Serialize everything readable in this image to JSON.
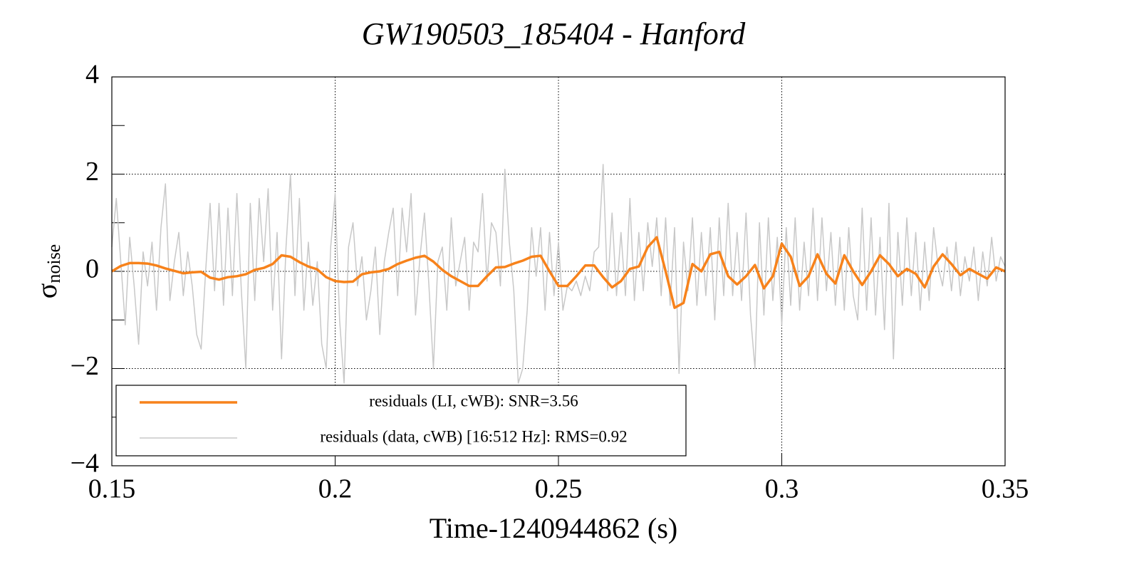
{
  "chart_data": {
    "type": "line",
    "title": "GW190503_185404 - Hanford",
    "xlabel": "Time-1240944862 (s)",
    "ylabel": "σ",
    "ylabel_subscript": "noise",
    "xlim": [
      0.15,
      0.35
    ],
    "xticks": [
      0.15,
      0.2,
      0.25,
      0.3,
      0.35
    ],
    "ylim": [
      -4,
      4
    ],
    "yticks": [
      {
        "value": -4,
        "label": "−4"
      },
      {
        "value": -2,
        "label": "−2"
      },
      0,
      2,
      4
    ],
    "yminor": [
      -3,
      -1,
      1,
      3
    ],
    "grid": true,
    "legend": "lower left",
    "series": [
      {
        "name": "residuals (data, cWB) [16:512 Hz]: RMS=0.92",
        "color": "#c8c8c8",
        "width": 1.5,
        "x": [
          0.15,
          0.151,
          0.152,
          0.153,
          0.154,
          0.155,
          0.156,
          0.157,
          0.158,
          0.159,
          0.16,
          0.161,
          0.162,
          0.163,
          0.164,
          0.165,
          0.166,
          0.167,
          0.168,
          0.169,
          0.17,
          0.171,
          0.172,
          0.173,
          0.174,
          0.175,
          0.176,
          0.177,
          0.178,
          0.179,
          0.18,
          0.181,
          0.182,
          0.183,
          0.184,
          0.185,
          0.186,
          0.187,
          0.188,
          0.189,
          0.19,
          0.191,
          0.192,
          0.193,
          0.194,
          0.195,
          0.196,
          0.197,
          0.198,
          0.199,
          0.2,
          0.201,
          0.202,
          0.203,
          0.204,
          0.205,
          0.206,
          0.207,
          0.208,
          0.209,
          0.21,
          0.211,
          0.212,
          0.213,
          0.214,
          0.215,
          0.216,
          0.217,
          0.218,
          0.219,
          0.22,
          0.221,
          0.222,
          0.223,
          0.224,
          0.225,
          0.226,
          0.227,
          0.228,
          0.229,
          0.23,
          0.231,
          0.232,
          0.233,
          0.234,
          0.235,
          0.236,
          0.237,
          0.238,
          0.239,
          0.24,
          0.241,
          0.242,
          0.243,
          0.244,
          0.245,
          0.246,
          0.247,
          0.248,
          0.249,
          0.25,
          0.251,
          0.252,
          0.253,
          0.254,
          0.255,
          0.256,
          0.257,
          0.258,
          0.259,
          0.26,
          0.261,
          0.262,
          0.263,
          0.264,
          0.265,
          0.266,
          0.267,
          0.268,
          0.269,
          0.27,
          0.271,
          0.272,
          0.273,
          0.274,
          0.275,
          0.276,
          0.277,
          0.278,
          0.279,
          0.28,
          0.281,
          0.282,
          0.283,
          0.284,
          0.285,
          0.286,
          0.287,
          0.288,
          0.289,
          0.29,
          0.291,
          0.292,
          0.293,
          0.294,
          0.295,
          0.296,
          0.297,
          0.298,
          0.299,
          0.3,
          0.301,
          0.302,
          0.303,
          0.304,
          0.305,
          0.306,
          0.307,
          0.308,
          0.309,
          0.31,
          0.311,
          0.312,
          0.313,
          0.314,
          0.315,
          0.316,
          0.317,
          0.318,
          0.319,
          0.32,
          0.321,
          0.322,
          0.323,
          0.324,
          0.325,
          0.326,
          0.327,
          0.328,
          0.329,
          0.33,
          0.331,
          0.332,
          0.333,
          0.334,
          0.335,
          0.336,
          0.337,
          0.338,
          0.339,
          0.34,
          0.341,
          0.342,
          0.343,
          0.344,
          0.345,
          0.346,
          0.347,
          0.348,
          0.349,
          0.35
        ],
        "values": [
          0.5,
          1.5,
          0.2,
          -1.1,
          0.7,
          -0.3,
          -1.5,
          0.4,
          -0.3,
          0.6,
          -0.8,
          0.9,
          1.8,
          -0.6,
          0.2,
          0.8,
          -0.5,
          0.4,
          -0.3,
          -1.3,
          -1.6,
          0.0,
          1.4,
          -0.4,
          1.4,
          -0.7,
          1.3,
          -0.5,
          1.6,
          -0.4,
          -2.0,
          1.4,
          -0.6,
          1.5,
          0.2,
          1.7,
          -0.8,
          0.8,
          -1.8,
          0.5,
          2.0,
          -0.5,
          1.5,
          -0.8,
          0.6,
          -0.7,
          0.2,
          -1.5,
          -2.0,
          0.5,
          1.6,
          -1.0,
          -2.3,
          0.5,
          1.0,
          -0.3,
          0.3,
          -1.0,
          -0.4,
          0.5,
          -1.3,
          0.2,
          0.8,
          1.3,
          -0.5,
          1.3,
          0.4,
          1.6,
          -0.9,
          0.3,
          1.2,
          -0.3,
          -2.0,
          0.2,
          0.5,
          -0.8,
          1.1,
          -0.3,
          0.2,
          0.7,
          -0.8,
          0.6,
          0.4,
          1.6,
          -0.2,
          1.0,
          0.8,
          -0.3,
          2.1,
          0.6,
          -0.4,
          -2.3,
          -2.0,
          -0.8,
          0.9,
          -0.1,
          0.9,
          -0.8,
          0.8,
          -0.5,
          0.6,
          -0.8,
          -0.3,
          -0.4,
          -0.2,
          -0.5,
          -0.1,
          -0.4,
          0.4,
          0.5,
          2.2,
          -0.4,
          1.2,
          -0.5,
          0.8,
          -0.5,
          1.5,
          -0.6,
          0.8,
          -0.4,
          1.0,
          0.1,
          1.1,
          -0.5,
          1.1,
          -0.7,
          0.9,
          -2.1,
          0.6,
          -0.4,
          1.1,
          -0.7,
          0.8,
          -0.5,
          0.9,
          -1.0,
          1.1,
          -0.5,
          1.4,
          -0.5,
          0.8,
          -0.6,
          1.2,
          -0.9,
          -2.0,
          1.0,
          -0.9,
          1.1,
          -0.6,
          0.7,
          -1.1,
          0.9,
          -0.7,
          1.1,
          -0.8,
          0.6,
          -0.5,
          1.3,
          -0.6,
          1.1,
          -0.4,
          0.8,
          -0.7,
          0.7,
          -0.8,
          0.9,
          -0.5,
          -1.0,
          1.3,
          -0.8,
          1.1,
          -0.9,
          0.7,
          -1.2,
          1.4,
          -1.8,
          0.8,
          -0.7,
          1.1,
          -0.5,
          0.8,
          -0.8,
          0.6,
          -0.6,
          0.9,
          0.1,
          -0.3,
          0.5,
          -0.4,
          0.6,
          -0.5,
          0.3,
          -0.2,
          0.5,
          -0.6,
          0.4,
          -0.3,
          0.7,
          -0.2,
          0.3,
          0.1
        ]
      },
      {
        "name": "residuals (LI, cWB): SNR=3.56",
        "color": "#f7821b",
        "width": 3.5,
        "x": [
          0.15,
          0.152,
          0.154,
          0.156,
          0.158,
          0.16,
          0.162,
          0.164,
          0.166,
          0.168,
          0.17,
          0.172,
          0.174,
          0.176,
          0.178,
          0.18,
          0.182,
          0.184,
          0.186,
          0.188,
          0.19,
          0.192,
          0.194,
          0.196,
          0.198,
          0.2,
          0.202,
          0.204,
          0.206,
          0.208,
          0.21,
          0.212,
          0.214,
          0.216,
          0.218,
          0.22,
          0.222,
          0.224,
          0.226,
          0.228,
          0.23,
          0.232,
          0.234,
          0.236,
          0.238,
          0.24,
          0.242,
          0.244,
          0.246,
          0.248,
          0.25,
          0.252,
          0.254,
          0.256,
          0.258,
          0.26,
          0.262,
          0.264,
          0.266,
          0.268,
          0.27,
          0.272,
          0.274,
          0.276,
          0.278,
          0.28,
          0.282,
          0.284,
          0.286,
          0.288,
          0.29,
          0.292,
          0.294,
          0.296,
          0.298,
          0.3,
          0.302,
          0.304,
          0.306,
          0.308,
          0.31,
          0.312,
          0.314,
          0.316,
          0.318,
          0.32,
          0.322,
          0.324,
          0.326,
          0.328,
          0.33,
          0.332,
          0.334,
          0.336,
          0.338,
          0.34,
          0.342,
          0.344,
          0.346,
          0.348,
          0.35
        ],
        "values": [
          0,
          0.11,
          0.17,
          0.17,
          0.16,
          0.12,
          0.06,
          0.01,
          -0.04,
          -0.02,
          -0.01,
          -0.13,
          -0.17,
          -0.12,
          -0.1,
          -0.06,
          0.03,
          0.07,
          0.15,
          0.33,
          0.3,
          0.19,
          0.1,
          0.04,
          -0.12,
          -0.2,
          -0.22,
          -0.21,
          -0.06,
          -0.02,
          0.0,
          0.05,
          0.15,
          0.22,
          0.28,
          0.32,
          0.2,
          0.03,
          -0.1,
          -0.2,
          -0.3,
          -0.3,
          -0.1,
          0.08,
          0.09,
          0.16,
          0.22,
          0.3,
          0.32,
          0.0,
          -0.3,
          -0.3,
          -0.1,
          0.12,
          0.12,
          -0.12,
          -0.33,
          -0.2,
          0.05,
          0.1,
          0.5,
          0.7,
          0.0,
          -0.75,
          -0.65,
          0.15,
          0.0,
          0.35,
          0.4,
          -0.1,
          -0.27,
          -0.1,
          0.13,
          -0.35,
          -0.1,
          0.57,
          0.3,
          -0.3,
          -0.1,
          0.35,
          -0.05,
          -0.25,
          0.33,
          0.0,
          -0.28,
          0.0,
          0.33,
          0.15,
          -0.1,
          0.05,
          -0.05,
          -0.33,
          0.1,
          0.35,
          0.15,
          -0.08,
          0.05,
          -0.05,
          -0.15,
          0.08,
          0.0
        ]
      }
    ]
  }
}
